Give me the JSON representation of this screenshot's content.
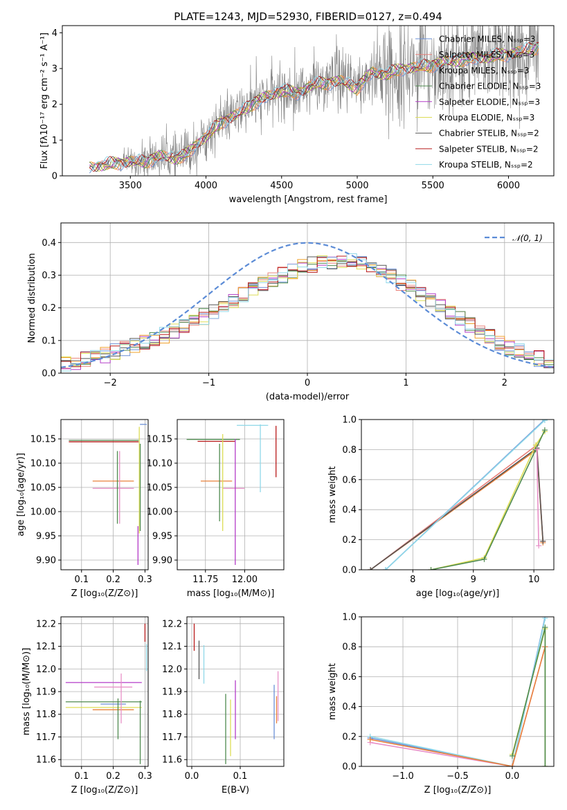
{
  "colors": {
    "chabrier_miles": "#6a8fd6",
    "salpeter_miles": "#e8807a",
    "kroupa_miles": "#f0a02a",
    "chabrier_elodie": "#4f8a4f",
    "salpeter_elodie": "#b43cc8",
    "kroupa_elodie": "#dddd55",
    "chabrier_stelib": "#555555",
    "salpeter_stelib": "#b81a1a",
    "kroupa_stelib": "#8fd8e8",
    "data": "#808080",
    "normal": "#5b8bd6",
    "extra_orange": "#e8803a",
    "extra_pink": "#e890c8"
  },
  "chart_data": [
    {
      "id": "spectrum",
      "type": "line",
      "title": "PLATE=1243, MJD=52930, FIBERID=0127, z=0.494",
      "xlabel": "wavelength [Angstrom, rest frame]",
      "ylabel": "Flux [fλ10⁻¹⁷ erg cm⁻² s⁻¹ A⁻¹]",
      "xlim": [
        3050,
        6300
      ],
      "ylim": [
        0,
        4.2
      ],
      "xticks": [
        "3500",
        "4000",
        "4500",
        "5000",
        "5500",
        "6000"
      ],
      "yticks": [
        "0",
        "1",
        "2",
        "3",
        "4"
      ],
      "legend_position": "upper-right",
      "legend": [
        {
          "label": "Chabrier MILES, Nₛₛₚ=3",
          "color_key": "chabrier_miles"
        },
        {
          "label": "Salpeter MILES, Nₛₛₚ=3",
          "color_key": "salpeter_miles"
        },
        {
          "label": "Kroupa MILES, Nₛₛₚ=3",
          "color_key": "kroupa_miles"
        },
        {
          "label": "Chabrier ELODIE, Nₛₛₚ=3",
          "color_key": "chabrier_elodie"
        },
        {
          "label": "Salpeter ELODIE, Nₛₛₚ=3",
          "color_key": "salpeter_elodie"
        },
        {
          "label": "Kroupa ELODIE, Nₛₛₚ=3",
          "color_key": "kroupa_elodie"
        },
        {
          "label": "Chabrier STELIB, Nₛₛₚ=2",
          "color_key": "chabrier_stelib"
        },
        {
          "label": "Salpeter STELIB, Nₛₛₚ=2",
          "color_key": "salpeter_stelib"
        },
        {
          "label": "Kroupa STELIB, Nₛₛₚ=2",
          "color_key": "kroupa_stelib"
        }
      ],
      "continuum": {
        "x": [
          3230,
          3300,
          3400,
          3500,
          3600,
          3700,
          3800,
          3850,
          3900,
          3950,
          4000,
          4100,
          4200,
          4300,
          4400,
          4500,
          4600,
          4700,
          4800,
          4900,
          5000,
          5100,
          5200,
          5300,
          5400,
          5500,
          5600,
          5700,
          5800,
          5900,
          6000,
          6100,
          6200
        ],
        "y": [
          0.25,
          0.3,
          0.35,
          0.4,
          0.4,
          0.55,
          0.5,
          0.55,
          0.7,
          0.95,
          1.1,
          1.5,
          1.7,
          2.0,
          2.2,
          2.4,
          2.3,
          2.55,
          2.6,
          2.65,
          2.45,
          2.9,
          2.85,
          3.0,
          3.05,
          3.1,
          3.2,
          3.25,
          3.3,
          3.35,
          3.4,
          3.5,
          3.6
        ]
      },
      "data_noise_amplitude": {
        "x": [
          3230,
          3500,
          3600,
          3900,
          4000,
          4500,
          5000,
          5200,
          5500,
          6000,
          6200
        ],
        "y": [
          0.05,
          0.4,
          0.6,
          0.8,
          0.7,
          0.8,
          1.0,
          1.4,
          1.5,
          1.6,
          1.6
        ]
      }
    },
    {
      "id": "residuals",
      "type": "line",
      "xlabel": "(data-model)/error",
      "ylabel": "Normed distribution",
      "xlim": [
        -2.5,
        2.5
      ],
      "ylim": [
        0,
        0.46
      ],
      "xticks": [
        "−2",
        "−1",
        "0",
        "1",
        "2"
      ],
      "yticks": [
        "0.0",
        "0.1",
        "0.2",
        "0.3",
        "0.4"
      ],
      "grid": true,
      "legend_position": "upper-right",
      "legend": [
        {
          "label": "𝒩(0, 1)",
          "color_key": "normal"
        }
      ],
      "normal": {
        "mean": 0,
        "sigma": 1
      },
      "hist_bin_width": 0.1,
      "hist_envelope": {
        "x": [
          -2.5,
          -2.0,
          -1.5,
          -1.0,
          -0.5,
          0.0,
          0.5,
          1.0,
          1.5,
          2.0,
          2.5
        ],
        "y": [
          0.025,
          0.06,
          0.11,
          0.18,
          0.27,
          0.33,
          0.35,
          0.27,
          0.18,
          0.08,
          0.03
        ]
      }
    },
    {
      "id": "age_vs_Z",
      "type": "scatter",
      "xlabel": "Z [log₁₀(Z/Z⊙)]",
      "ylabel": "age  [log₁₀(age/yr)]",
      "xlim": [
        0.035,
        0.31
      ],
      "ylim": [
        9.88,
        10.19
      ],
      "xticks": [
        "0.1",
        "0.2",
        "0.3"
      ],
      "yticks": [
        "9.90",
        "9.95",
        "10.00",
        "10.05",
        "10.10",
        "10.15"
      ],
      "grid": true,
      "errorbars": [
        {
          "x": 0.17,
          "y": 10.147,
          "xerr": 0.11,
          "yerr": 0.0,
          "color_key": "chabrier_elodie"
        },
        {
          "x": 0.17,
          "y": 10.144,
          "xerr": 0.11,
          "yerr": 0.0,
          "color_key": "salpeter_stelib"
        },
        {
          "x": 0.2,
          "y": 10.063,
          "xerr": 0.065,
          "yerr": 0.0,
          "color_key": "extra_orange"
        },
        {
          "x": 0.2,
          "y": 10.048,
          "xerr": 0.065,
          "yerr": 0.0,
          "color_key": "extra_pink"
        },
        {
          "x": 0.213,
          "y": 10.05,
          "xerr": 0.0,
          "yerr": 0.075,
          "color_key": "chabrier_elodie"
        },
        {
          "x": 0.22,
          "y": 10.05,
          "xerr": 0.0,
          "yerr": 0.075,
          "color_key": "extra_pink"
        },
        {
          "x": 0.282,
          "y": 10.065,
          "xerr": 0.0,
          "yerr": 0.11,
          "color_key": "kroupa_elodie"
        },
        {
          "x": 0.285,
          "y": 10.05,
          "xerr": 0.0,
          "yerr": 0.09,
          "color_key": "chabrier_elodie"
        },
        {
          "x": 0.278,
          "y": 9.93,
          "xerr": 0.0,
          "yerr": 0.04,
          "color_key": "salpeter_elodie"
        },
        {
          "x": 0.295,
          "y": 10.18,
          "xerr": 0.0,
          "yerr": 0.0,
          "color_key": "chabrier_miles"
        }
      ]
    },
    {
      "id": "age_vs_mass",
      "type": "scatter",
      "xlabel": "mass [log₁₀(M/M⊙)]",
      "ylabel": "",
      "xlim": [
        11.57,
        12.25
      ],
      "ylim": [
        9.88,
        10.19
      ],
      "xticks": [
        "11.75",
        "12.00"
      ],
      "yticks": [
        "9.90",
        "9.95",
        "10.00",
        "10.05",
        "10.10",
        "10.15"
      ],
      "grid": true,
      "errorbars": [
        {
          "x": 11.8,
          "y": 10.149,
          "xerr": 0.17,
          "yerr": 0.0,
          "color_key": "chabrier_elodie"
        },
        {
          "x": 11.82,
          "y": 10.145,
          "xerr": 0.12,
          "yerr": 0.0,
          "color_key": "salpeter_stelib"
        },
        {
          "x": 11.82,
          "y": 10.063,
          "xerr": 0.1,
          "yerr": 0.0,
          "color_key": "extra_orange"
        },
        {
          "x": 11.93,
          "y": 10.048,
          "xerr": 0.07,
          "yerr": 0.0,
          "color_key": "extra_pink"
        },
        {
          "x": 11.84,
          "y": 10.06,
          "xerr": 0.0,
          "yerr": 0.08,
          "color_key": "chabrier_elodie"
        },
        {
          "x": 11.86,
          "y": 10.06,
          "xerr": 0.0,
          "yerr": 0.1,
          "color_key": "kroupa_elodie"
        },
        {
          "x": 11.94,
          "y": 10.02,
          "xerr": 0.0,
          "yerr": 0.13,
          "color_key": "salpeter_elodie"
        },
        {
          "x": 12.1,
          "y": 10.11,
          "xerr": 0.0,
          "yerr": 0.07,
          "color_key": "kroupa_stelib"
        },
        {
          "x": 12.2,
          "y": 10.124,
          "xerr": 0.0,
          "yerr": 0.053,
          "color_key": "salpeter_stelib"
        },
        {
          "x": 12.05,
          "y": 10.178,
          "xerr": 0.1,
          "yerr": 0.0,
          "color_key": "kroupa_stelib"
        }
      ]
    },
    {
      "id": "mass_weight_vs_age",
      "type": "line",
      "xlabel": "age  [log₁₀(age/yr)]",
      "ylabel": "mass weight",
      "xlim": [
        7.15,
        10.33
      ],
      "ylim": [
        0,
        1.0
      ],
      "xticks": [
        "8",
        "9",
        "10"
      ],
      "yticks": [
        "0.0",
        "0.2",
        "0.4",
        "0.6",
        "0.8",
        "1.0"
      ],
      "grid": true,
      "series": [
        {
          "color_key": "salpeter_miles",
          "x": [
            7.3,
            10.05,
            10.15
          ],
          "y": [
            0.0,
            0.83,
            0.19
          ]
        },
        {
          "color_key": "extra_orange",
          "x": [
            7.3,
            10.05,
            10.15
          ],
          "y": [
            0.0,
            0.8,
            0.18
          ]
        },
        {
          "color_key": "chabrier_stelib",
          "x": [
            7.3,
            10.05,
            10.15
          ],
          "y": [
            0.0,
            0.81,
            0.19
          ]
        },
        {
          "color_key": "chabrier_miles",
          "x": [
            7.55,
            10.18
          ],
          "y": [
            0.0,
            1.0
          ]
        },
        {
          "color_key": "kroupa_stelib",
          "x": [
            7.55,
            10.18
          ],
          "y": [
            0.0,
            0.995
          ]
        },
        {
          "color_key": "kroupa_elodie",
          "x": [
            8.3,
            9.18,
            10.03,
            10.18
          ],
          "y": [
            0.0,
            0.08,
            0.83,
            0.92
          ]
        },
        {
          "color_key": "chabrier_elodie",
          "x": [
            8.3,
            9.18,
            10.03,
            10.18
          ],
          "y": [
            0.0,
            0.07,
            0.8,
            0.93
          ]
        },
        {
          "color_key": "extra_pink",
          "x": [
            10.05,
            10.08
          ],
          "y": [
            0.8,
            0.16
          ]
        }
      ]
    },
    {
      "id": "mass_vs_Z",
      "type": "scatter",
      "xlabel": "Z [log₁₀(Z/Z⊙)]",
      "ylabel": "mass [log₁₀(M/M⊙)]",
      "xlim": [
        0.035,
        0.31
      ],
      "ylim": [
        11.57,
        12.23
      ],
      "xticks": [
        "0.1",
        "0.2",
        "0.3"
      ],
      "yticks": [
        "11.6",
        "11.7",
        "11.8",
        "11.9",
        "12.0",
        "12.1",
        "12.2"
      ],
      "grid": true,
      "errorbars": [
        {
          "x": 0.17,
          "y": 11.94,
          "xerr": 0.12,
          "yerr": 0.0,
          "color_key": "salpeter_elodie"
        },
        {
          "x": 0.2,
          "y": 11.92,
          "xerr": 0.06,
          "yerr": 0.0,
          "color_key": "extra_pink"
        },
        {
          "x": 0.17,
          "y": 11.855,
          "xerr": 0.12,
          "yerr": 0.0,
          "color_key": "chabrier_elodie"
        },
        {
          "x": 0.17,
          "y": 11.83,
          "xerr": 0.12,
          "yerr": 0.0,
          "color_key": "kroupa_elodie"
        },
        {
          "x": 0.2,
          "y": 11.82,
          "xerr": 0.065,
          "yerr": 0.0,
          "color_key": "extra_orange"
        },
        {
          "x": 0.2,
          "y": 11.845,
          "xerr": 0.04,
          "yerr": 0.0,
          "color_key": "chabrier_miles"
        },
        {
          "x": 0.215,
          "y": 11.78,
          "xerr": 0.0,
          "yerr": 0.09,
          "color_key": "chabrier_elodie"
        },
        {
          "x": 0.225,
          "y": 11.87,
          "xerr": 0.0,
          "yerr": 0.11,
          "color_key": "extra_pink"
        },
        {
          "x": 0.285,
          "y": 11.72,
          "xerr": 0.0,
          "yerr": 0.14,
          "color_key": "chabrier_elodie"
        },
        {
          "x": 0.3,
          "y": 12.16,
          "xerr": 0.0,
          "yerr": 0.04,
          "color_key": "salpeter_stelib"
        },
        {
          "x": 0.305,
          "y": 12.05,
          "xerr": 0.0,
          "yerr": 0.06,
          "color_key": "kroupa_stelib"
        }
      ]
    },
    {
      "id": "mass_vs_ebv",
      "type": "scatter",
      "xlabel": "E(B-V)",
      "ylabel": "",
      "xlim": [
        -0.01,
        0.19
      ],
      "ylim": [
        11.57,
        12.23
      ],
      "xticks": [
        "0.0",
        "0.1"
      ],
      "yticks": [
        "11.6",
        "11.7",
        "11.8",
        "11.9",
        "12.0",
        "12.1",
        "12.2"
      ],
      "grid": true,
      "errorbars": [
        {
          "x": 0.005,
          "y": 12.14,
          "xerr": 0.0,
          "yerr": 0.06,
          "color_key": "salpeter_stelib"
        },
        {
          "x": 0.015,
          "y": 12.04,
          "xerr": 0.0,
          "yerr": 0.085,
          "color_key": "chabrier_stelib"
        },
        {
          "x": 0.025,
          "y": 12.02,
          "xerr": 0.0,
          "yerr": 0.085,
          "color_key": "kroupa_stelib"
        },
        {
          "x": 0.07,
          "y": 11.735,
          "xerr": 0.0,
          "yerr": 0.155,
          "color_key": "chabrier_elodie"
        },
        {
          "x": 0.08,
          "y": 11.74,
          "xerr": 0.0,
          "yerr": 0.125,
          "color_key": "kroupa_elodie"
        },
        {
          "x": 0.09,
          "y": 11.82,
          "xerr": 0.0,
          "yerr": 0.13,
          "color_key": "salpeter_elodie"
        },
        {
          "x": 0.17,
          "y": 11.81,
          "xerr": 0.0,
          "yerr": 0.12,
          "color_key": "chabrier_miles"
        },
        {
          "x": 0.175,
          "y": 11.82,
          "xerr": 0.0,
          "yerr": 0.06,
          "color_key": "extra_orange"
        },
        {
          "x": 0.178,
          "y": 11.88,
          "xerr": 0.0,
          "yerr": 0.11,
          "color_key": "extra_pink"
        }
      ]
    },
    {
      "id": "mass_weight_vs_Z",
      "type": "line",
      "xlabel": "Z [log₁₀(Z/Z⊙)]",
      "ylabel": "mass weight",
      "xlim": [
        -1.38,
        0.38
      ],
      "ylim": [
        0,
        1.0
      ],
      "xticks": [
        "−1.0",
        "−0.5",
        "0.0"
      ],
      "yticks": [
        "0.0",
        "0.2",
        "0.4",
        "0.6",
        "0.8",
        "1.0"
      ],
      "grid": true,
      "series": [
        {
          "color_key": "chabrier_miles",
          "x": [
            -1.3,
            0.0,
            0.3
          ],
          "y": [
            0.19,
            0.0,
            1.0
          ]
        },
        {
          "color_key": "kroupa_stelib",
          "x": [
            -1.3,
            0.0,
            0.3
          ],
          "y": [
            0.2,
            0.0,
            0.99
          ]
        },
        {
          "color_key": "extra_pink",
          "x": [
            -1.3,
            0.0,
            0.3
          ],
          "y": [
            0.16,
            0.0,
            0.8
          ]
        },
        {
          "color_key": "extra_orange",
          "x": [
            -1.3,
            0.0,
            0.3
          ],
          "y": [
            0.18,
            0.0,
            0.8
          ]
        },
        {
          "color_key": "kroupa_elodie",
          "x": [
            0.0,
            0.3,
            0.3
          ],
          "y": [
            0.08,
            0.92,
            0.0
          ]
        },
        {
          "color_key": "chabrier_elodie",
          "x": [
            0.0,
            0.3,
            0.3
          ],
          "y": [
            0.07,
            0.93,
            0.0
          ]
        }
      ]
    }
  ]
}
